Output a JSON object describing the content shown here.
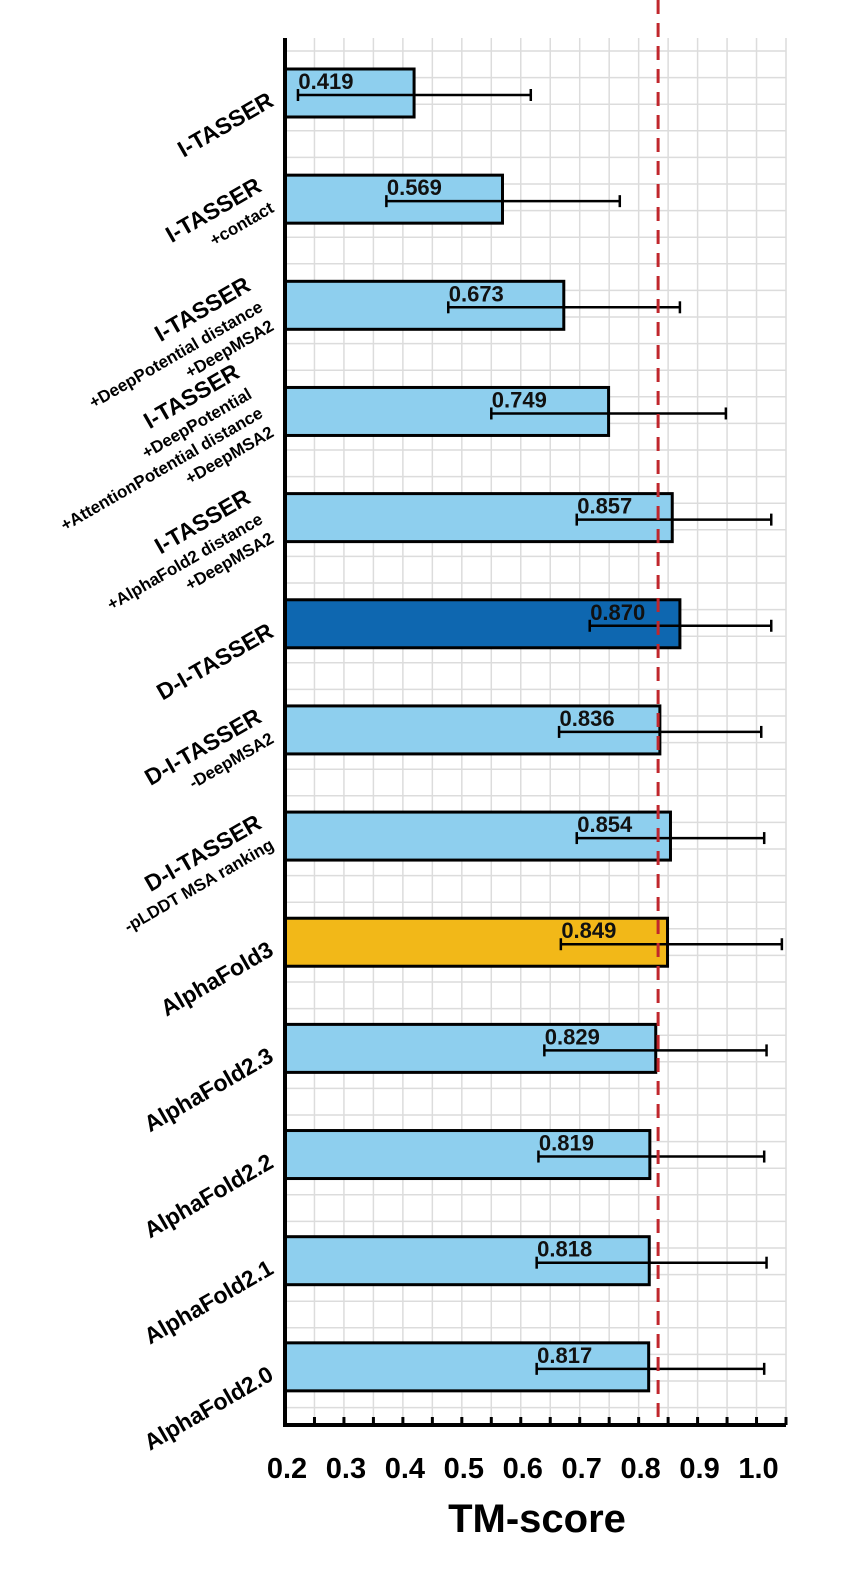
{
  "chart_data": {
    "type": "bar",
    "orientation": "horizontal",
    "xlabel": "TM-score",
    "xlim": [
      0.2,
      1.05
    ],
    "xticks": [
      "0.2",
      "0.3",
      "0.4",
      "0.5",
      "0.6",
      "0.7",
      "0.8",
      "0.9",
      "1.0"
    ],
    "grid": true,
    "reference_line": {
      "x": 0.833,
      "style": "dashed",
      "color": "#c0272d"
    },
    "colors": {
      "default": "#8ecfee",
      "highlight": "#0e67b0",
      "alphafold3": "#f2b818"
    },
    "categories": [
      {
        "lines": [
          "I-TASSER"
        ],
        "value": 0.419,
        "label": "0.419",
        "err": [
          0.222,
          0.617
        ],
        "color": "default"
      },
      {
        "lines": [
          "I-TASSER",
          "+contact"
        ],
        "value": 0.569,
        "label": "0.569",
        "err": [
          0.372,
          0.768
        ],
        "color": "default"
      },
      {
        "lines": [
          "I-TASSER",
          "+DeepPotential distance",
          "+DeepMSA2"
        ],
        "value": 0.673,
        "label": "0.673",
        "err": [
          0.477,
          0.87
        ],
        "color": "default"
      },
      {
        "lines": [
          "I-TASSER",
          "+DeepPotential",
          "+AttentionPotential distance",
          "+DeepMSA2"
        ],
        "value": 0.749,
        "label": "0.749",
        "err": [
          0.55,
          0.948
        ],
        "color": "default"
      },
      {
        "lines": [
          "I-TASSER",
          "+AlphaFold2 distance",
          "+DeepMSA2"
        ],
        "value": 0.857,
        "label": "0.857",
        "err": [
          0.695,
          1.025
        ],
        "color": "default"
      },
      {
        "lines": [
          "D-I-TASSER"
        ],
        "value": 0.87,
        "label": "0.870",
        "err": [
          0.717,
          1.025
        ],
        "color": "highlight"
      },
      {
        "lines": [
          "D-I-TASSER",
          "-DeepMSA2"
        ],
        "value": 0.836,
        "label": "0.836",
        "err": [
          0.665,
          1.008
        ],
        "color": "default"
      },
      {
        "lines": [
          "D-I-TASSER",
          "-pLDDT MSA ranking"
        ],
        "value": 0.854,
        "label": "0.854",
        "err": [
          0.695,
          1.013
        ],
        "color": "default"
      },
      {
        "lines": [
          "AlphaFold3"
        ],
        "value": 0.849,
        "label": "0.849",
        "err": [
          0.668,
          1.043
        ],
        "color": "alphafold3"
      },
      {
        "lines": [
          "AlphaFold2.3"
        ],
        "value": 0.829,
        "label": "0.829",
        "err": [
          0.64,
          1.017
        ],
        "color": "default"
      },
      {
        "lines": [
          "AlphaFold2.2"
        ],
        "value": 0.819,
        "label": "0.819",
        "err": [
          0.63,
          1.013
        ],
        "color": "default"
      },
      {
        "lines": [
          "AlphaFold2.1"
        ],
        "value": 0.818,
        "label": "0.818",
        "err": [
          0.627,
          1.017
        ],
        "color": "default"
      },
      {
        "lines": [
          "AlphaFold2.0"
        ],
        "value": 0.817,
        "label": "0.817",
        "err": [
          0.627,
          1.013
        ],
        "color": "default"
      }
    ]
  }
}
